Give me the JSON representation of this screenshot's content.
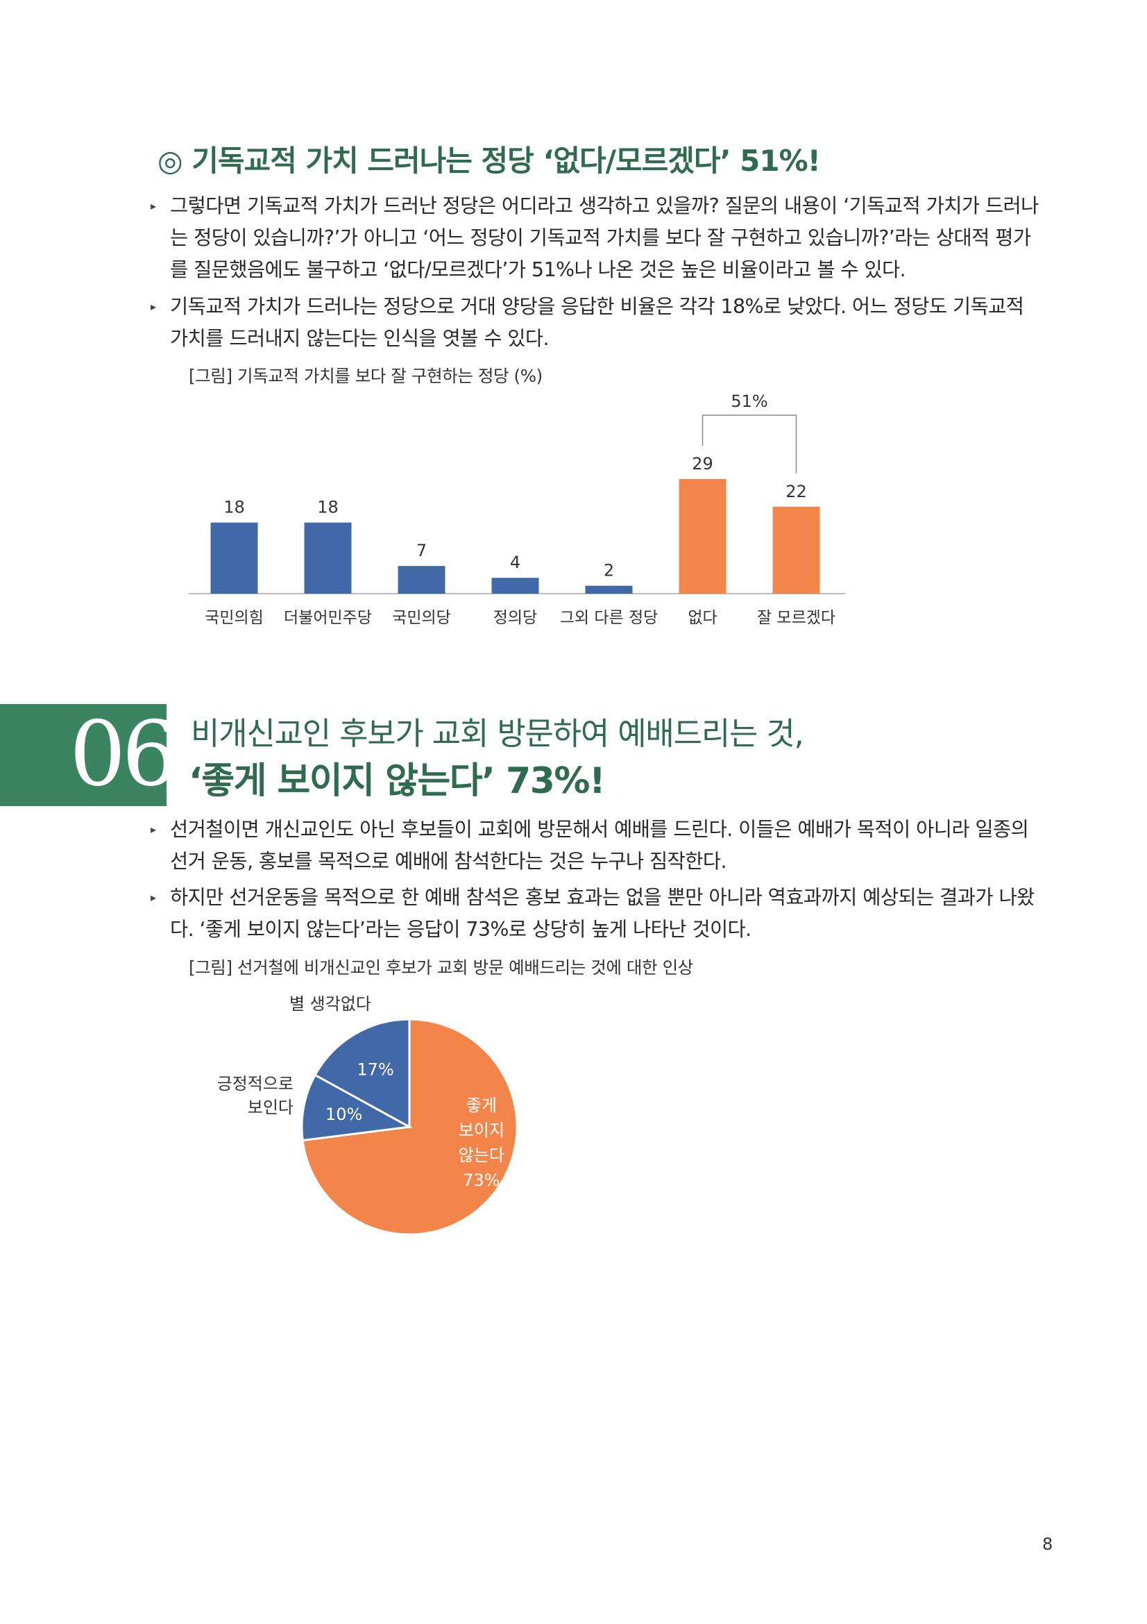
{
  "section1": {
    "heading": "◎ 기독교적 가치 드러나는 정당 ‘없다/모르겠다’ 51%!",
    "bullets": [
      "그렇다면 기독교적 가치가 드러난 정당은 어디라고 생각하고 있을까? 질문의 내용이 ‘기독교적 가치가 드러나는 정당이 있습니까?’가 아니고 ‘어느 정당이 기독교적 가치를 보다 잘 구현하고 있습니까?’라는 상대적 평가를 질문했음에도 불구하고 ‘없다/모르겠다’가 51%나 나온 것은 높은 비율이라고 볼 수 있다.",
      "기독교적 가치가 드러나는 정당으로 거대 양당을 응답한 비율은 각각 18%로 낮았다. 어느 정당도 기독교적 가치를 드러내지 않는다는 인식을 엿볼 수 있다."
    ],
    "caption": "[그림] 기독교적 가치를 보다 잘 구현하는 정당 (%)"
  },
  "section2": {
    "number": "06",
    "title_line1": "비개신교인 후보가 교회 방문하여 예배드리는 것,",
    "title_line2": "‘좋게 보이지 않는다’ 73%!",
    "bullets": [
      "선거철이면 개신교인도 아닌 후보들이 교회에 방문해서 예배를 드린다. 이들은 예배가 목적이 아니라 일종의 선거 운동, 홍보를 목적으로 예배에 참석한다는 것은 누구나 짐작한다.",
      "하지만 선거운동을 목적으로 한 예배 참석은 홍보 효과는 없을 뿐만 아니라 역효과까지 예상되는 결과가 나왔다. ‘좋게 보이지 않는다’라는 응답이 73%로 상당히 높게 나타난 것이다."
    ],
    "caption": "[그림] 선거철에 비개신교인 후보가 교회 방문 예배드리는 것에 대한 인상"
  },
  "chart_data": [
    {
      "type": "bar",
      "categories": [
        "국민의힘",
        "더불어민주당",
        "국민의당",
        "정의당",
        "그외 다른 정당",
        "없다",
        "잘 모르겠다"
      ],
      "values": [
        18,
        18,
        7,
        4,
        2,
        29,
        22
      ],
      "value_labels": [
        "18",
        "18",
        "7",
        "4",
        "2",
        "29",
        "22"
      ],
      "colors": [
        "#4169a8",
        "#4169a8",
        "#4169a8",
        "#4169a8",
        "#4169a8",
        "#f4854a",
        "#f4854a"
      ],
      "bracket_label": "51%",
      "ylim": [
        0,
        29
      ]
    },
    {
      "type": "pie",
      "slices": [
        {
          "outer_label": "",
          "inner_label_lines": [
            "좋게",
            "보이지",
            "않는다",
            "73%"
          ],
          "value": 73,
          "color": "#f4854a"
        },
        {
          "outer_label": "긍정적으로\n보인다",
          "inner_label_lines": [
            "10%"
          ],
          "value": 10,
          "color": "#4169a8"
        },
        {
          "outer_label": "별 생각없다",
          "inner_label_lines": [
            "17%"
          ],
          "value": 17,
          "color": "#4169a8"
        }
      ]
    }
  ],
  "page_number": "8"
}
